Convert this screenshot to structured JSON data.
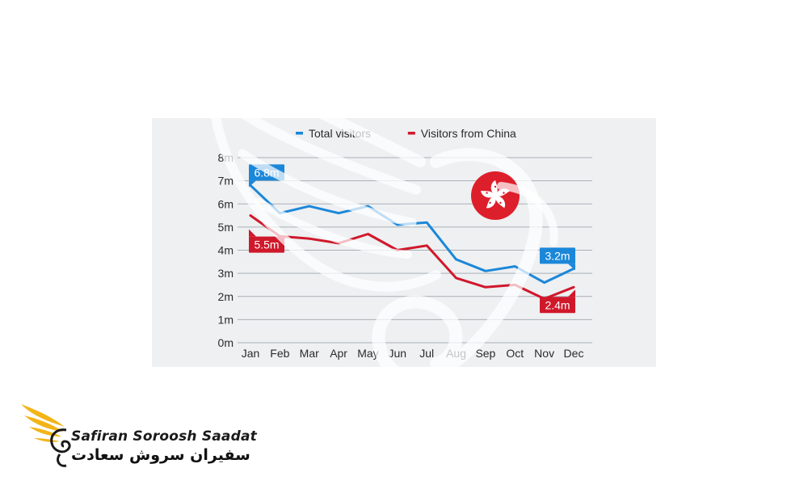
{
  "chart_data": {
    "type": "line",
    "categories": [
      "Jan",
      "Feb",
      "Mar",
      "Apr",
      "May",
      "Jun",
      "Jul",
      "Aug",
      "Sep",
      "Oct",
      "Nov",
      "Dec"
    ],
    "series": [
      {
        "name": "Total visitors",
        "color": "#1b87d9",
        "values": [
          6.8,
          5.6,
          5.9,
          5.6,
          5.9,
          5.1,
          5.2,
          3.6,
          3.1,
          3.3,
          2.6,
          3.2
        ]
      },
      {
        "name": "Visitors from China",
        "color": "#d0182b",
        "values": [
          5.5,
          4.6,
          4.5,
          4.3,
          4.7,
          4.0,
          4.2,
          2.8,
          2.4,
          2.5,
          1.9,
          2.4
        ]
      }
    ],
    "yticks": [
      "0m",
      "1m",
      "2m",
      "3m",
      "4m",
      "5m",
      "6m",
      "7m",
      "8m"
    ],
    "ylim": [
      0,
      8
    ],
    "grid": true,
    "legend_position": "top",
    "callouts": [
      {
        "series": 0,
        "index": 0,
        "text": "6.8m"
      },
      {
        "series": 1,
        "index": 0,
        "text": "5.5m"
      },
      {
        "series": 0,
        "index": 11,
        "text": "3.2m"
      },
      {
        "series": 1,
        "index": 11,
        "text": "2.4m"
      }
    ],
    "flag_icon": "hong-kong-flag-icon"
  },
  "brand": {
    "latin": "Safiran Soroosh Saadat",
    "persian": "سفیران سروش سعادت",
    "logo_icon": "golden-wing-logo-icon",
    "logo_color": "#f2b417"
  }
}
